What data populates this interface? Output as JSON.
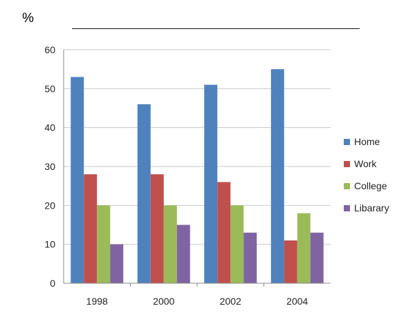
{
  "chart_data": {
    "type": "bar",
    "unit_label": "%",
    "categories": [
      "1998",
      "2000",
      "2002",
      "2004"
    ],
    "series": [
      {
        "name": "Home",
        "color": "#4F81BD",
        "values": [
          53,
          46,
          51,
          55
        ]
      },
      {
        "name": "Work",
        "color": "#C0504D",
        "values": [
          28,
          28,
          26,
          11
        ]
      },
      {
        "name": "College",
        "color": "#9BBB59",
        "values": [
          20,
          20,
          20,
          18
        ]
      },
      {
        "name": "Libarary",
        "color": "#8064A2",
        "values": [
          10,
          15,
          13,
          13
        ]
      }
    ],
    "ylim": [
      0,
      60
    ],
    "yticks": [
      "0",
      "10",
      "20",
      "30",
      "40",
      "50",
      "60"
    ],
    "grid": true,
    "legend_position": "right"
  }
}
